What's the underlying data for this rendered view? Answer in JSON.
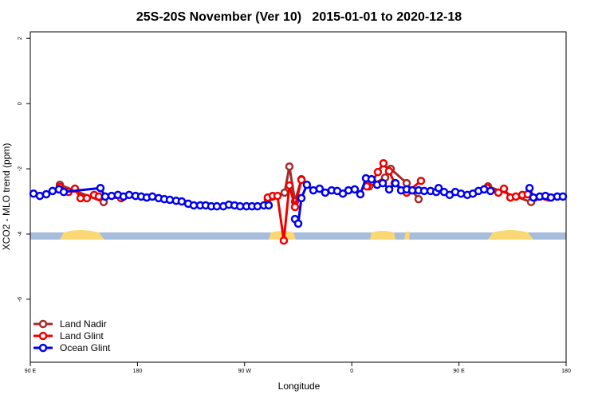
{
  "chart_data": {
    "type": "line",
    "title": "25S-20S November (Ver 10)   2015-01-01 to 2020-12-18",
    "x_label": "Longitude",
    "y_label": "XCO2 - MLO trend (ppm)",
    "xlim": [
      90,
      540
    ],
    "xticks": [
      {
        "value": 90,
        "label": "90 E"
      },
      180,
      {
        "value": 270,
        "label": "90 W"
      },
      {
        "value": 360,
        "label": "0"
      },
      {
        "value": 450,
        "label": "90 E"
      },
      {
        "value": 540,
        "label": "180"
      }
    ],
    "ylim": [
      -7.93,
      2.2
    ],
    "yticks": [
      2,
      0,
      -2,
      -4,
      -6
    ],
    "legend": "bottom-left",
    "series": [
      {
        "name": "Land Nadir",
        "color": "#a52a2a",
        "x": [
          114.8,
          151.6,
          null,
          289.5,
          293.6,
          303.6,
          307.6,
          312.3,
          317.7,
          null,
          374.6,
          388.0,
          392.7,
          406.1,
          416.1,
          null,
          474.4,
          510.6,
          522.6
        ],
        "values": [
          -2.49,
          -3.02,
          null,
          -2.93,
          -2.85,
          -2.73,
          -1.93,
          -3.0,
          -2.32,
          null,
          -2.54,
          -2.27,
          -2.0,
          -2.44,
          -2.93,
          null,
          -2.54,
          -3.02,
          -2.85
        ]
      },
      {
        "name": "Land Glint",
        "color": "#ee0000",
        "x": [
          114.8,
          122.1,
          127.5,
          132.2,
          137.5,
          143.6,
          147.6,
          166.3,
          null,
          289.5,
          293.6,
          297.6,
          302.9,
          307.6,
          312.3,
          317.7,
          null,
          372.6,
          377.3,
          381.9,
          386.6,
          391.3,
          396.0,
          406.1,
          418.1,
          null,
          473.7,
          483.1,
          487.8,
          493.2,
          497.8,
          503.2,
          507.8,
          525.2
        ],
        "values": [
          -2.56,
          -2.71,
          -2.61,
          -2.9,
          -2.9,
          -2.8,
          -2.85,
          -2.9,
          null,
          -2.88,
          -2.83,
          -2.83,
          -4.2,
          -2.51,
          -3.17,
          -2.34,
          null,
          -2.54,
          -2.39,
          -2.1,
          -1.83,
          -2.07,
          -2.44,
          -2.73,
          -2.37,
          null,
          -2.59,
          -2.73,
          -2.61,
          -2.88,
          -2.85,
          -2.8,
          -2.78,
          -2.88
        ]
      },
      {
        "name": "Ocean Glint",
        "color": "#0000ee",
        "x": [
          92.7,
          98.0,
          103.4,
          108.7,
          114.1,
          118.1,
          148.9,
          152.9,
          158.3,
          163.6,
          168.3,
          173.0,
          178.4,
          183.1,
          187.8,
          192.5,
          197.8,
          202.5,
          207.2,
          212.5,
          217.2,
          222.6,
          227.3,
          232.7,
          237.3,
          242.0,
          246.7,
          252.1,
          256.8,
          261.5,
          266.2,
          271.5,
          276.2,
          280.8,
          286.2,
          290.2,
          null,
          312.3,
          315.0,
          317.7,
          322.3,
          327.7,
          333.0,
          337.7,
          343.1,
          347.8,
          352.5,
          357.2,
          362.5,
          367.2,
          371.9,
          376.6,
          381.3,
          386.0,
          391.4,
          396.7,
          401.4,
          406.1,
          410.8,
          416.1,
          420.8,
          426.2,
          430.9,
          432.9,
          437.5,
          442.2,
          446.9,
          451.7,
          457.0,
          461.7,
          466.4,
          471.1,
          476.5,
          null,
          509.3,
          512.5,
          517.9,
          522.6,
          527.3,
          532.6,
          537.3
        ],
        "values": [
          -2.76,
          -2.83,
          -2.78,
          -2.68,
          -2.63,
          -2.71,
          -2.59,
          -2.85,
          -2.83,
          -2.8,
          -2.85,
          -2.8,
          -2.83,
          -2.85,
          -2.88,
          -2.85,
          -2.9,
          -2.93,
          -2.95,
          -2.98,
          -3.0,
          -3.07,
          -3.12,
          -3.12,
          -3.12,
          -3.15,
          -3.15,
          -3.15,
          -3.1,
          -3.12,
          -3.15,
          -3.15,
          -3.15,
          -3.15,
          -3.12,
          -3.12,
          null,
          -3.54,
          -3.68,
          -2.9,
          -2.49,
          -2.66,
          -2.61,
          -2.73,
          -2.66,
          -2.68,
          -2.76,
          -2.66,
          -2.63,
          -2.78,
          -2.29,
          -2.32,
          -2.49,
          -2.44,
          -2.63,
          -2.44,
          -2.66,
          -2.63,
          -2.66,
          -2.66,
          -2.68,
          -2.68,
          -2.71,
          -2.59,
          -2.71,
          -2.8,
          -2.71,
          -2.76,
          -2.8,
          -2.76,
          -2.68,
          -2.63,
          -2.68,
          null,
          -2.59,
          -2.88,
          -2.85,
          -2.83,
          -2.88,
          -2.85,
          -2.85
        ]
      }
    ]
  }
}
